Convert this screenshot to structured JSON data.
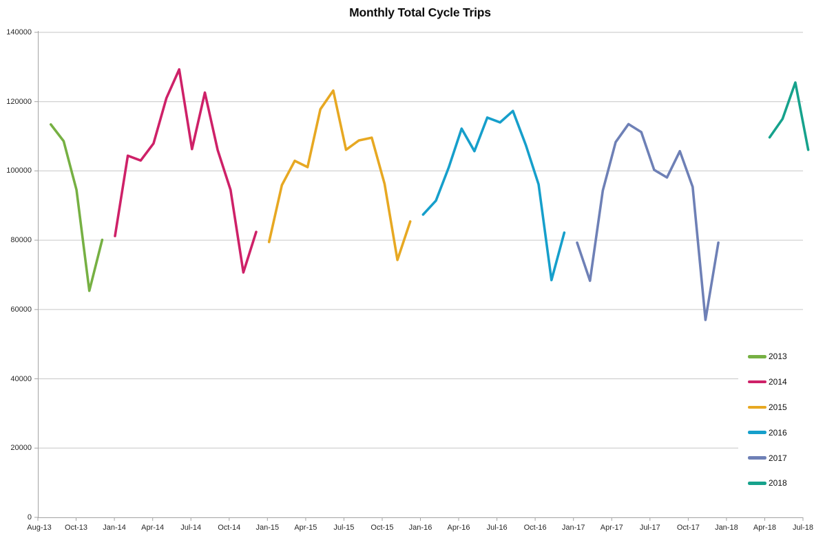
{
  "title": "Monthly Total Cycle Trips",
  "legend": {
    "position": "right-lower",
    "entries": [
      "2013",
      "2014",
      "2015",
      "2016",
      "2017",
      "2018"
    ]
  },
  "chart_data": {
    "type": "line",
    "title": "Monthly Total Cycle Trips",
    "xlabel": "",
    "ylabel": "",
    "x_unit": "month",
    "x_range": [
      "Aug-13",
      "Jul-18"
    ],
    "x_total_months": 60,
    "ylim": [
      0,
      140000
    ],
    "y_tick_step": 20000,
    "y_tick_labels": [
      "0",
      "20000",
      "40000",
      "60000",
      "80000",
      "100000",
      "120000",
      "140000"
    ],
    "x_tick_labels": [
      "Aug-13",
      "Oct-13",
      "Jan-14",
      "Apr-14",
      "Jul-14",
      "Oct-14",
      "Jan-15",
      "Apr-15",
      "Jul-15",
      "Oct-15",
      "Jan-16",
      "Apr-16",
      "Jul-16",
      "Oct-16",
      "Jan-17",
      "Apr-17",
      "Jul-17",
      "Oct-17",
      "Jan-18",
      "Apr-18",
      "Jul-18"
    ],
    "grid": "horizontal",
    "grid_color": "#c6c6c6",
    "axis_color": "#a3a3a3",
    "series": [
      {
        "name": "2013",
        "color": "#76b043",
        "start_month": "Aug-13",
        "start_index": 0,
        "values": [
          113400,
          108600,
          94500,
          65400,
          80100
        ]
      },
      {
        "name": "2014",
        "color": "#ce2168",
        "start_month": "Jan-14",
        "start_index": 5,
        "values": [
          81200,
          104400,
          103000,
          107900,
          121000,
          129300,
          106300,
          122600,
          106000,
          94500,
          70700,
          82400
        ]
      },
      {
        "name": "2015",
        "color": "#e7a822",
        "start_month": "Jan-15",
        "start_index": 17,
        "values": [
          79500,
          95900,
          102900,
          101100,
          117800,
          123200,
          106100,
          108800,
          109600,
          96300,
          74300,
          85400
        ]
      },
      {
        "name": "2016",
        "color": "#169fcb",
        "start_month": "Jan-16",
        "start_index": 29,
        "values": [
          87400,
          91400,
          101000,
          112200,
          105700,
          115400,
          114000,
          117300,
          107500,
          96100,
          68500,
          82200
        ]
      },
      {
        "name": "2017",
        "color": "#6e80b6",
        "start_month": "Jan-17",
        "start_index": 41,
        "values": [
          79300,
          68300,
          94300,
          108300,
          113500,
          111200,
          100300,
          98100,
          105700,
          95400,
          57000,
          79300
        ]
      },
      {
        "name": "2018",
        "color": "#16a28c",
        "start_month": "Apr-18",
        "start_index": 56,
        "values": [
          109700,
          115000,
          125500,
          106100
        ]
      }
    ]
  }
}
